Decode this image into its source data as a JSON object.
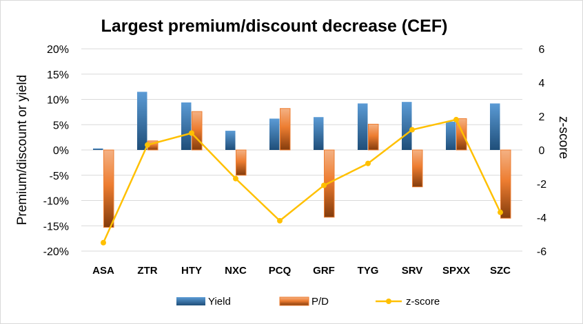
{
  "chart_data": {
    "type": "bar",
    "title": "Largest premium/discount decrease (CEF)",
    "categories": [
      "ASA",
      "ZTR",
      "HTY",
      "NXC",
      "PCQ",
      "GRF",
      "TYG",
      "SRV",
      "SPXX",
      "SZC"
    ],
    "series": [
      {
        "name": "Yield",
        "type": "bar",
        "axis": "left",
        "color": "#2e75b6",
        "values": [
          0.3,
          11.5,
          9.4,
          3.8,
          6.2,
          6.5,
          9.2,
          9.5,
          5.6,
          9.2
        ]
      },
      {
        "name": "P/D",
        "type": "bar",
        "axis": "left",
        "color": "#ed7d31",
        "values": [
          -15.3,
          1.8,
          7.6,
          -5.0,
          8.2,
          -13.3,
          5.1,
          -7.3,
          6.2,
          -13.5
        ]
      },
      {
        "name": "z-score",
        "type": "line",
        "axis": "right",
        "color": "#ffc000",
        "values": [
          -5.5,
          0.3,
          1.0,
          -1.7,
          -4.2,
          -2.1,
          -0.8,
          1.2,
          1.8,
          -3.7
        ]
      }
    ],
    "ylabel": "Premium/discount or yield",
    "y2label": "z-score",
    "ylim": [
      -20,
      20
    ],
    "y2lim": [
      -6,
      6
    ],
    "yticks": [
      "20%",
      "15%",
      "10%",
      "5%",
      "0%",
      "-5%",
      "-10%",
      "-15%",
      "-20%"
    ],
    "y2ticks": [
      "6",
      "4",
      "2",
      "0",
      "-2",
      "-4",
      "-6"
    ],
    "grid": true,
    "legend_position": "bottom"
  }
}
